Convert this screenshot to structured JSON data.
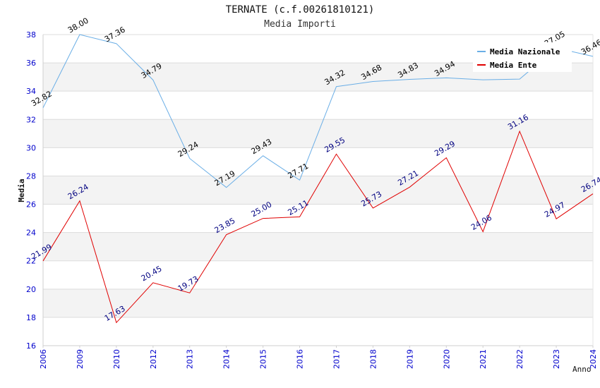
{
  "chart_data": {
    "type": "line",
    "title": "TERNATE (c.f.00261810121)",
    "subtitle": "Media Importi",
    "xlabel": "Anno",
    "ylabel": "Media",
    "ylim": [
      16,
      38
    ],
    "yticks": [
      16,
      18,
      20,
      22,
      24,
      26,
      28,
      30,
      32,
      34,
      36,
      38
    ],
    "categories": [
      "2006",
      "2009",
      "2010",
      "2012",
      "2013",
      "2014",
      "2015",
      "2016",
      "2017",
      "2018",
      "2019",
      "2020",
      "2021",
      "2022",
      "2023",
      "2024"
    ],
    "grid": "horizontal bands",
    "legend_position": "top-right",
    "series": [
      {
        "name": "Media Nazionale",
        "color": "#6aaee6",
        "label_color": "#000000",
        "values": [
          32.82,
          38.0,
          37.36,
          34.79,
          29.24,
          27.19,
          29.43,
          27.71,
          34.32,
          34.68,
          34.83,
          34.94,
          34.8,
          34.85,
          37.05,
          36.46
        ],
        "labels": [
          "32.82",
          "38.00",
          "37.36",
          "34.79",
          "29.24",
          "27.19",
          "29.43",
          "27.71",
          "34.32",
          "34.68",
          "34.83",
          "34.94",
          "",
          "",
          "37.05",
          "36.46"
        ]
      },
      {
        "name": "Media Ente",
        "color": "#e00000",
        "label_color": "#000080",
        "values": [
          21.99,
          26.24,
          17.63,
          20.45,
          19.73,
          23.85,
          25.0,
          25.11,
          29.55,
          25.73,
          27.21,
          29.29,
          24.06,
          31.16,
          24.97,
          26.74
        ],
        "labels": [
          "21.99",
          "26.24",
          "17.63",
          "20.45",
          "19.73",
          "23.85",
          "25.00",
          "25.11",
          "29.55",
          "25.73",
          "27.21",
          "29.29",
          "24.06",
          "31.16",
          "24.97",
          "26.74"
        ]
      }
    ]
  }
}
